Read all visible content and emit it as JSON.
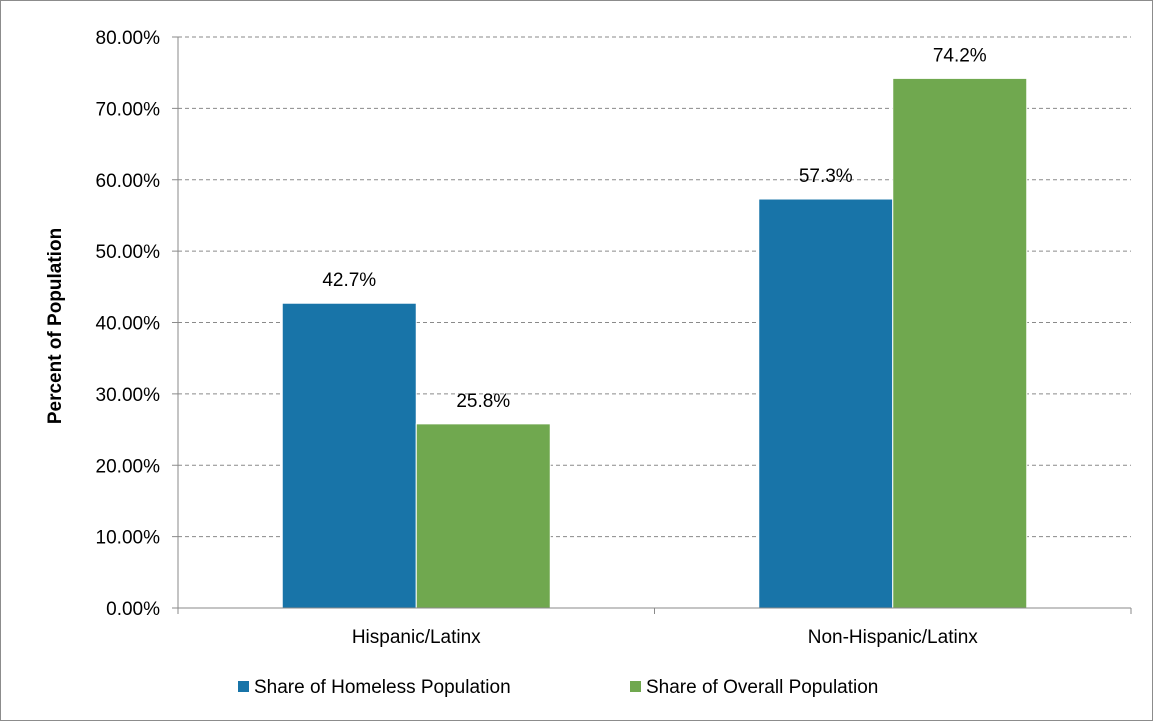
{
  "chart_data": {
    "type": "bar",
    "categories": [
      "Hispanic/Latinx",
      "Non-Hispanic/Latinx"
    ],
    "series": [
      {
        "name": "Share of Homeless Population",
        "values": [
          42.7,
          57.3
        ],
        "labels": [
          "42.7%",
          "57.3%"
        ],
        "color": "#1874a8"
      },
      {
        "name": "Share of Overall Population",
        "values": [
          25.8,
          74.2
        ],
        "labels": [
          "25.8%",
          "74.2%"
        ],
        "color": "#70a84f"
      }
    ],
    "ylabel": "Percent of Population",
    "xlabel": "",
    "ylim": [
      0,
      80
    ],
    "yticks": [
      0,
      10,
      20,
      30,
      40,
      50,
      60,
      70,
      80
    ],
    "ytick_labels": [
      "0.00%",
      "10.00%",
      "20.00%",
      "30.00%",
      "40.00%",
      "50.00%",
      "60.00%",
      "70.00%",
      "80.00%"
    ],
    "grid": true,
    "legend_position": "bottom"
  }
}
